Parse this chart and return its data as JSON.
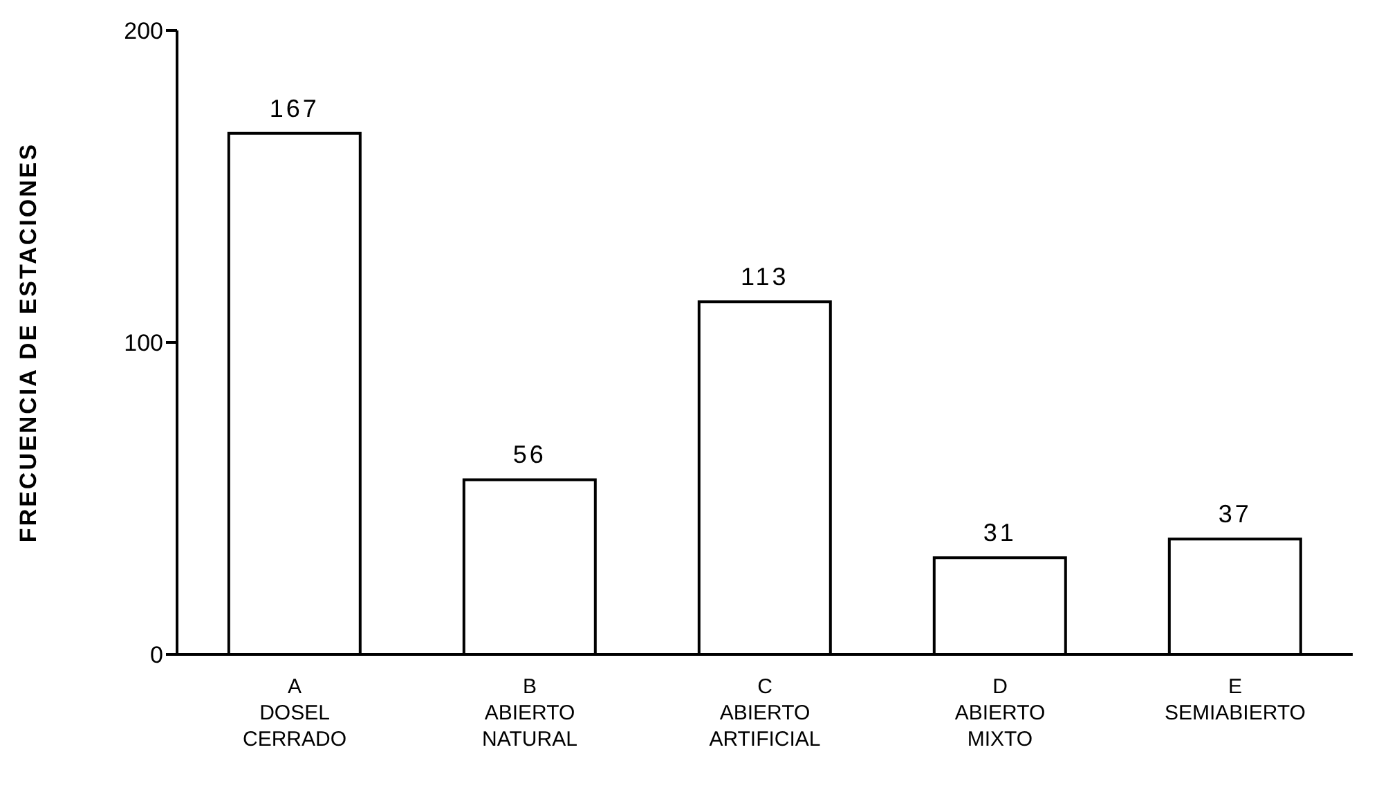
{
  "chart_data": {
    "type": "bar",
    "categories": [
      "A\nDOSEL\nCERRADO",
      "B\nABIERTO\nNATURAL",
      "C\nABIERTO\nARTIFICIAL",
      "D\nABIERTO\nMIXTO",
      "E\nSEMIABIERTO"
    ],
    "values": [
      167,
      56,
      113,
      31,
      37
    ],
    "color": "#ffffff",
    "ylabel": "FRECUENCIA DE ESTACIONES",
    "ylim": [
      0,
      200
    ],
    "yticks": [
      0,
      100,
      200
    ],
    "data_labels": true,
    "grid": false
  }
}
